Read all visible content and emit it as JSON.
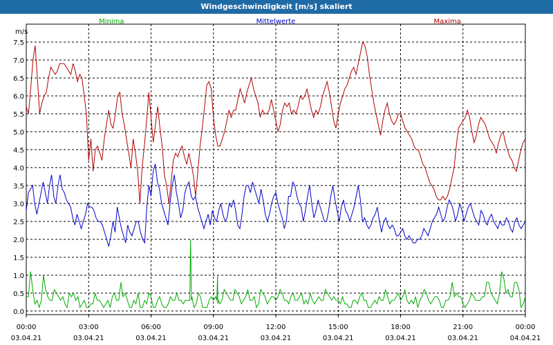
{
  "window": {
    "title": "Windgeschwindigkeit [m/s] skaliert"
  },
  "chart_data": {
    "type": "line",
    "title": "Windgeschwindigkeit [m/s] skaliert",
    "ylabel": "m/s",
    "ylim": [
      -0.1,
      8.0
    ],
    "xlim_hours": [
      0,
      24
    ],
    "y_ticks": [
      "0.0",
      "0.5",
      "1.0",
      "1.5",
      "2.0",
      "2.5",
      "3.0",
      "3.5",
      "4.0",
      "4.5",
      "5.0",
      "5.5",
      "6.0",
      "6.5",
      "7.0",
      "7.5"
    ],
    "x_ticks": [
      {
        "hour": 0,
        "time": "00:00",
        "date": "03.04.21"
      },
      {
        "hour": 3,
        "time": "03:00",
        "date": "03.04.21"
      },
      {
        "hour": 6,
        "time": "06:00",
        "date": "03.04.21"
      },
      {
        "hour": 9,
        "time": "09:00",
        "date": "03.04.21"
      },
      {
        "hour": 12,
        "time": "12:00",
        "date": "03.04.21"
      },
      {
        "hour": 15,
        "time": "15:00",
        "date": "03.04.21"
      },
      {
        "hour": 18,
        "time": "18:00",
        "date": "03.04.21"
      },
      {
        "hour": 21,
        "time": "21:00",
        "date": "03.04.21"
      },
      {
        "hour": 24,
        "time": "00:00",
        "date": "04.04.21"
      }
    ],
    "grid": true,
    "series": [
      {
        "name": "Minima",
        "color": "#00aa00",
        "label_hour": 4.1,
        "values": [
          0.4,
          0.4,
          1.1,
          0.6,
          0.2,
          0.3,
          0.1,
          0.3,
          1.0,
          0.6,
          0.4,
          0.3,
          0.3,
          0.6,
          0.5,
          0.4,
          0.3,
          0.4,
          0.2,
          0.1,
          0.5,
          0.4,
          0.5,
          0.3,
          0.4,
          0.1,
          0.2,
          0.3,
          0.1,
          0.1,
          0.2,
          0.2,
          0.5,
          0.3,
          0.3,
          0.2,
          0.1,
          0.2,
          0.3,
          0.1,
          0.4,
          0.5,
          0.3,
          0.3,
          0.8,
          0.4,
          0.5,
          0.3,
          0.1,
          0.1,
          0.3,
          0.2,
          0.5,
          0.1,
          0.1,
          0.3,
          0.2,
          0.5,
          0.4,
          0.1,
          0.1,
          0.3,
          0.4,
          0.2,
          0.1,
          0.1,
          0.2,
          0.4,
          0.3,
          0.3,
          0.5,
          0.3,
          0.3,
          0.2,
          0.3,
          0.3,
          0.3,
          0.4,
          0.1,
          0.2,
          0.5,
          0.4,
          0.1,
          0.1,
          0.1,
          0.3,
          0.4,
          0.3,
          0.4,
          0.2,
          0.2,
          0.3,
          0.6,
          0.5,
          0.4,
          0.3,
          0.3,
          0.6,
          0.5,
          0.4,
          0.2,
          0.3,
          0.4,
          0.6,
          0.3,
          0.3,
          0.4,
          0.1,
          0.2,
          0.6,
          0.5,
          0.4,
          0.2,
          0.3,
          0.4,
          0.4,
          0.3,
          0.4,
          0.6,
          0.5,
          0.3,
          0.3,
          0.2,
          0.4,
          0.5,
          0.3,
          0.3,
          0.4,
          0.5,
          0.2,
          0.3,
          0.2,
          0.5,
          0.3,
          0.2,
          0.3,
          0.4,
          0.3,
          0.3,
          0.6,
          0.5,
          0.4,
          0.3,
          0.4,
          0.3,
          0.3,
          0.2,
          0.4,
          0.2,
          0.2,
          0.1,
          0.1,
          0.3,
          0.3,
          0.2,
          0.4,
          0.5,
          0.3,
          0.3,
          0.1,
          0.1,
          0.2,
          0.3,
          0.2,
          0.4,
          0.3,
          0.3,
          0.6,
          0.4,
          0.2,
          0.3,
          0.3,
          0.4,
          0.5,
          0.3,
          0.4,
          0.6,
          0.3,
          0.2,
          0.3,
          0.2,
          0.4,
          0.1,
          0.3,
          0.4,
          0.6,
          0.5,
          0.3,
          0.2,
          0.3,
          0.4,
          0.4,
          0.3,
          0.1,
          0.1,
          0.3,
          0.3,
          0.4,
          0.8,
          0.4,
          0.5,
          0.4,
          0.4,
          0.2,
          0.1,
          0.2,
          0.3,
          0.5,
          0.4,
          0.3,
          0.3,
          0.3,
          0.4,
          0.4,
          0.8,
          0.8,
          0.5,
          0.4,
          0.3,
          0.2,
          0.5,
          1.1,
          0.9,
          0.5,
          0.6,
          0.4,
          0.4,
          0.8,
          0.8,
          0.6,
          0.1,
          0.2,
          0.4
        ],
        "spikes": [
          {
            "hour": 7.9,
            "value": 2.0
          },
          {
            "hour": 9.2,
            "value": 1.0
          }
        ]
      },
      {
        "name": "Mittelwerte",
        "color": "#0000cc",
        "label_hour": 12.0,
        "values": [
          2.8,
          3.3,
          3.4,
          3.5,
          3.0,
          2.7,
          3.0,
          3.3,
          3.6,
          3.3,
          3.0,
          3.5,
          3.8,
          3.2,
          3.0,
          3.5,
          3.8,
          3.4,
          3.3,
          3.1,
          3.0,
          2.9,
          2.6,
          2.4,
          2.7,
          2.5,
          2.3,
          2.5,
          2.7,
          3.0,
          2.9,
          2.9,
          2.8,
          2.6,
          2.5,
          2.5,
          2.4,
          2.2,
          2.0,
          1.8,
          2.1,
          2.5,
          2.2,
          2.9,
          2.6,
          2.3,
          2.1,
          1.9,
          2.4,
          2.2,
          2.1,
          2.3,
          2.5,
          2.5,
          2.2,
          2.0,
          1.9,
          2.9,
          3.5,
          3.2,
          3.9,
          4.1,
          3.6,
          3.4,
          3.0,
          2.8,
          2.6,
          2.4,
          3.0,
          3.5,
          3.8,
          3.3,
          3.0,
          2.6,
          2.8,
          3.3,
          3.5,
          3.6,
          3.2,
          3.1,
          3.2,
          2.9,
          2.7,
          2.5,
          2.3,
          2.5,
          2.7,
          2.4,
          2.8,
          2.6,
          2.5,
          2.8,
          3.0,
          2.7,
          2.5,
          2.6,
          3.0,
          2.9,
          3.1,
          2.8,
          2.4,
          2.3,
          2.7,
          3.2,
          3.5,
          3.5,
          3.3,
          3.6,
          3.4,
          3.2,
          3.0,
          3.4,
          3.1,
          2.7,
          2.5,
          2.7,
          3.0,
          3.2,
          3.3,
          3.0,
          2.8,
          2.6,
          2.3,
          2.5,
          3.2,
          3.2,
          3.6,
          3.5,
          3.2,
          3.0,
          2.9,
          2.5,
          2.8,
          3.2,
          3.5,
          3.0,
          2.6,
          2.8,
          3.1,
          2.9,
          2.7,
          2.5,
          2.5,
          2.8,
          3.2,
          3.5,
          3.1,
          2.8,
          2.5,
          2.9,
          3.1,
          2.8,
          2.7,
          2.5,
          2.7,
          2.9,
          3.2,
          3.5,
          3.1,
          2.5,
          2.6,
          2.4,
          2.3,
          2.4,
          2.6,
          2.7,
          2.9,
          2.5,
          2.2,
          2.5,
          2.6,
          2.4,
          2.3,
          2.4,
          2.3,
          2.1,
          2.1,
          2.2,
          2.3,
          2.1,
          2.0,
          2.1,
          2.0,
          1.9,
          1.9,
          2.0,
          2.0,
          2.1,
          2.3,
          2.2,
          2.1,
          2.3,
          2.5,
          2.6,
          2.7,
          2.9,
          2.7,
          2.5,
          2.6,
          2.9,
          3.1,
          3.0,
          2.8,
          2.5,
          2.7,
          3.0,
          2.8,
          2.5,
          2.7,
          2.9,
          3.0,
          2.8,
          2.6,
          2.5,
          2.4,
          2.8,
          2.7,
          2.5,
          2.4,
          2.6,
          2.7,
          2.5,
          2.4,
          2.3,
          2.5,
          2.4,
          2.4,
          2.6,
          2.5,
          2.3,
          2.2,
          2.5,
          2.6,
          2.4,
          2.3,
          2.4,
          2.5
        ]
      },
      {
        "name": "Maxima",
        "color": "#b00000",
        "label_hour": 20.25,
        "values": [
          5.7,
          5.5,
          6.2,
          7.0,
          7.4,
          6.5,
          5.5,
          5.8,
          6.0,
          6.1,
          6.5,
          6.8,
          6.7,
          6.6,
          6.7,
          6.9,
          6.9,
          6.9,
          6.8,
          6.7,
          6.6,
          6.9,
          6.7,
          6.4,
          6.6,
          6.5,
          6.0,
          5.5,
          4.2,
          4.8,
          3.9,
          4.5,
          4.6,
          4.4,
          4.2,
          4.8,
          5.2,
          5.6,
          5.2,
          5.1,
          5.5,
          6.0,
          6.1,
          5.5,
          5.2,
          4.8,
          4.4,
          4.0,
          4.8,
          4.4,
          3.9,
          3.0,
          4.0,
          4.6,
          5.3,
          6.1,
          5.4,
          4.7,
          5.2,
          5.7,
          5.1,
          4.6,
          3.8,
          3.5,
          3.0,
          3.6,
          4.2,
          4.4,
          4.3,
          4.5,
          4.6,
          4.3,
          4.1,
          4.4,
          4.1,
          3.8,
          3.2,
          3.9,
          4.6,
          5.1,
          5.7,
          6.3,
          6.4,
          6.2,
          5.4,
          4.9,
          4.6,
          4.6,
          4.8,
          5.0,
          5.3,
          5.6,
          5.4,
          5.6,
          5.6,
          5.9,
          6.2,
          6.0,
          5.8,
          6.1,
          6.3,
          6.5,
          6.2,
          6.0,
          5.8,
          5.4,
          5.6,
          5.5,
          5.5,
          5.6,
          5.9,
          5.6,
          5.3,
          5.0,
          5.2,
          5.6,
          5.8,
          5.7,
          5.8,
          5.5,
          5.6,
          5.5,
          5.7,
          6.0,
          5.9,
          6.0,
          6.2,
          5.9,
          5.6,
          5.4,
          5.6,
          5.5,
          5.7,
          6.0,
          6.2,
          6.4,
          6.1,
          5.7,
          5.3,
          5.1,
          5.5,
          5.8,
          6.0,
          6.2,
          6.3,
          6.5,
          6.7,
          6.8,
          6.6,
          6.9,
          7.2,
          7.5,
          7.4,
          7.1,
          6.6,
          6.2,
          5.8,
          5.5,
          5.2,
          4.9,
          5.3,
          5.6,
          5.8,
          5.5,
          5.3,
          5.2,
          5.3,
          5.5,
          5.5,
          5.3,
          5.1,
          5.0,
          4.9,
          4.8,
          4.6,
          4.5,
          4.5,
          4.3,
          4.1,
          4.0,
          3.8,
          3.6,
          3.5,
          3.4,
          3.2,
          3.1,
          3.1,
          3.2,
          3.1,
          3.2,
          3.4,
          3.7,
          4.0,
          4.6,
          5.1,
          5.2,
          5.3,
          5.4,
          5.6,
          5.4,
          5.0,
          4.7,
          4.9,
          5.2,
          5.4,
          5.3,
          5.2,
          5.0,
          4.8,
          4.7,
          4.6,
          4.4,
          4.7,
          4.9,
          5.0,
          4.7,
          4.5,
          4.3,
          4.2,
          4.0,
          3.9,
          4.2,
          4.5,
          4.7,
          4.8
        ]
      }
    ]
  }
}
